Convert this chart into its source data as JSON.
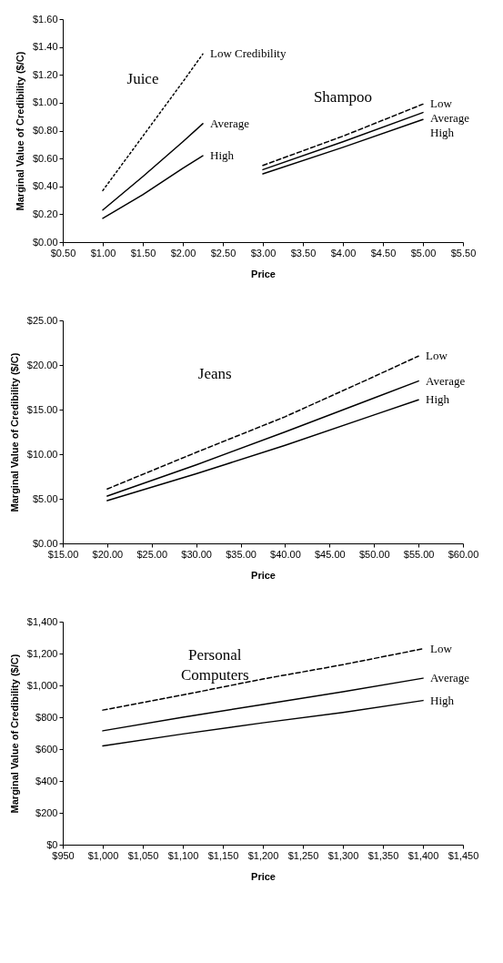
{
  "chart_data": [
    {
      "type": "line",
      "xlabel": "Price",
      "ylabel": "Marginal Value of Credibility ($/C)",
      "legend": false,
      "grid": false,
      "xlim": [
        0.5,
        5.5
      ],
      "ylim": [
        0,
        1.6
      ],
      "xticks": [
        {
          "value": 0.5,
          "label": "$0.50"
        },
        {
          "value": 1,
          "label": "$1.00"
        },
        {
          "value": 1.5,
          "label": "$1.50"
        },
        {
          "value": 2,
          "label": "$2.00"
        },
        {
          "value": 2.5,
          "label": "$2.50"
        },
        {
          "value": 3,
          "label": "$3.00"
        },
        {
          "value": 3.5,
          "label": "$3.50"
        },
        {
          "value": 4,
          "label": "$4.00"
        },
        {
          "value": 4.5,
          "label": "$4.50"
        },
        {
          "value": 5,
          "label": "$5.00"
        },
        {
          "value": 5.5,
          "label": "$5.50"
        }
      ],
      "yticks": [
        {
          "value": 0,
          "label": "$0.00"
        },
        {
          "value": 0.2,
          "label": "$0.20"
        },
        {
          "value": 0.4,
          "label": "$0.40"
        },
        {
          "value": 0.6,
          "label": "$0.60"
        },
        {
          "value": 0.8,
          "label": "$0.80"
        },
        {
          "value": 1,
          "label": "$1.00"
        },
        {
          "value": 1.2,
          "label": "$1.20"
        },
        {
          "value": 1.4,
          "label": "$1.40"
        },
        {
          "value": 1.6,
          "label": "$1.60"
        }
      ],
      "annotations": [
        "Juice",
        "Shampoo"
      ],
      "series": [
        {
          "name": "Low Credibility",
          "color": "#000000",
          "line_style": "dotted",
          "x": [
            1,
            1.5,
            2,
            2.25
          ],
          "values": [
            0.37,
            0.76,
            1.15,
            1.35
          ]
        },
        {
          "name": "Average",
          "color": "#000000",
          "line_style": "solid",
          "x": [
            1,
            1.5,
            2,
            2.25
          ],
          "values": [
            0.23,
            0.47,
            0.72,
            0.85
          ]
        },
        {
          "name": "High",
          "color": "#000000",
          "line_style": "solid",
          "x": [
            1,
            1.5,
            2,
            2.25
          ],
          "values": [
            0.17,
            0.34,
            0.53,
            0.62
          ]
        },
        {
          "name": "Low",
          "color": "#000000",
          "line_style": "dashed",
          "x": [
            3,
            4,
            5
          ],
          "values": [
            0.55,
            0.76,
            0.99
          ]
        },
        {
          "name": "Average",
          "color": "#000000",
          "line_style": "solid",
          "x": [
            3,
            4,
            5
          ],
          "values": [
            0.52,
            0.72,
            0.93
          ]
        },
        {
          "name": "High",
          "color": "#000000",
          "line_style": "solid",
          "x": [
            3,
            4,
            5
          ],
          "values": [
            0.49,
            0.68,
            0.88
          ]
        }
      ]
    },
    {
      "type": "line",
      "xlabel": "Price",
      "ylabel": "Marginal Value of Credibility ($/C)",
      "legend": false,
      "grid": false,
      "xlim": [
        15,
        60
      ],
      "ylim": [
        0,
        25
      ],
      "xticks": [
        {
          "value": 15,
          "label": "$15.00"
        },
        {
          "value": 20,
          "label": "$20.00"
        },
        {
          "value": 25,
          "label": "$25.00"
        },
        {
          "value": 30,
          "label": "$30.00"
        },
        {
          "value": 35,
          "label": "$35.00"
        },
        {
          "value": 40,
          "label": "$40.00"
        },
        {
          "value": 45,
          "label": "$45.00"
        },
        {
          "value": 50,
          "label": "$50.00"
        },
        {
          "value": 55,
          "label": "$55.00"
        },
        {
          "value": 60,
          "label": "$60.00"
        }
      ],
      "yticks": [
        {
          "value": 0,
          "label": "$0.00"
        },
        {
          "value": 5,
          "label": "$5.00"
        },
        {
          "value": 10,
          "label": "$10.00"
        },
        {
          "value": 15,
          "label": "$15.00"
        },
        {
          "value": 20,
          "label": "$20.00"
        },
        {
          "value": 25,
          "label": "$25.00"
        }
      ],
      "annotations": [
        "Jeans"
      ],
      "series": [
        {
          "name": "Low",
          "color": "#000000",
          "line_style": "dashed",
          "x": [
            20,
            30,
            40,
            50,
            55
          ],
          "values": [
            6.1,
            10.2,
            14.2,
            18.7,
            21.0
          ]
        },
        {
          "name": "Average",
          "color": "#000000",
          "line_style": "solid",
          "x": [
            20,
            30,
            40,
            50,
            55
          ],
          "values": [
            5.3,
            8.8,
            12.5,
            16.3,
            18.2
          ]
        },
        {
          "name": "High",
          "color": "#000000",
          "line_style": "solid",
          "x": [
            20,
            30,
            40,
            50,
            55
          ],
          "values": [
            4.8,
            7.8,
            11.0,
            14.4,
            16.1
          ]
        }
      ]
    },
    {
      "type": "line",
      "xlabel": "Price",
      "ylabel": "Marginal Value of Credibility ($/C)",
      "legend": false,
      "grid": false,
      "xlim": [
        950,
        1450
      ],
      "ylim": [
        0,
        1400
      ],
      "xticks": [
        {
          "value": 950,
          "label": "$950"
        },
        {
          "value": 1000,
          "label": "$1,000"
        },
        {
          "value": 1050,
          "label": "$1,050"
        },
        {
          "value": 1100,
          "label": "$1,100"
        },
        {
          "value": 1150,
          "label": "$1,150"
        },
        {
          "value": 1200,
          "label": "$1,200"
        },
        {
          "value": 1250,
          "label": "$1,250"
        },
        {
          "value": 1300,
          "label": "$1,300"
        },
        {
          "value": 1350,
          "label": "$1,350"
        },
        {
          "value": 1400,
          "label": "$1,400"
        },
        {
          "value": 1450,
          "label": "$1,450"
        }
      ],
      "yticks": [
        {
          "value": 0,
          "label": "$0"
        },
        {
          "value": 200,
          "label": "$200"
        },
        {
          "value": 400,
          "label": "$400"
        },
        {
          "value": 600,
          "label": "$600"
        },
        {
          "value": 800,
          "label": "$800"
        },
        {
          "value": 1000,
          "label": "$1,000"
        },
        {
          "value": 1200,
          "label": "$1,200"
        },
        {
          "value": 1400,
          "label": "$1,400"
        }
      ],
      "annotations": [
        "Personal\nComputers"
      ],
      "series": [
        {
          "name": "Low",
          "color": "#000000",
          "line_style": "dashed",
          "x": [
            1000,
            1100,
            1200,
            1300,
            1400
          ],
          "values": [
            845,
            940,
            1040,
            1130,
            1230
          ]
        },
        {
          "name": "Average",
          "color": "#000000",
          "line_style": "solid",
          "x": [
            1000,
            1100,
            1200,
            1300,
            1400
          ],
          "values": [
            715,
            800,
            880,
            960,
            1045
          ]
        },
        {
          "name": "High",
          "color": "#000000",
          "line_style": "solid",
          "x": [
            1000,
            1100,
            1200,
            1300,
            1400
          ],
          "values": [
            620,
            695,
            765,
            830,
            905
          ]
        }
      ]
    }
  ]
}
